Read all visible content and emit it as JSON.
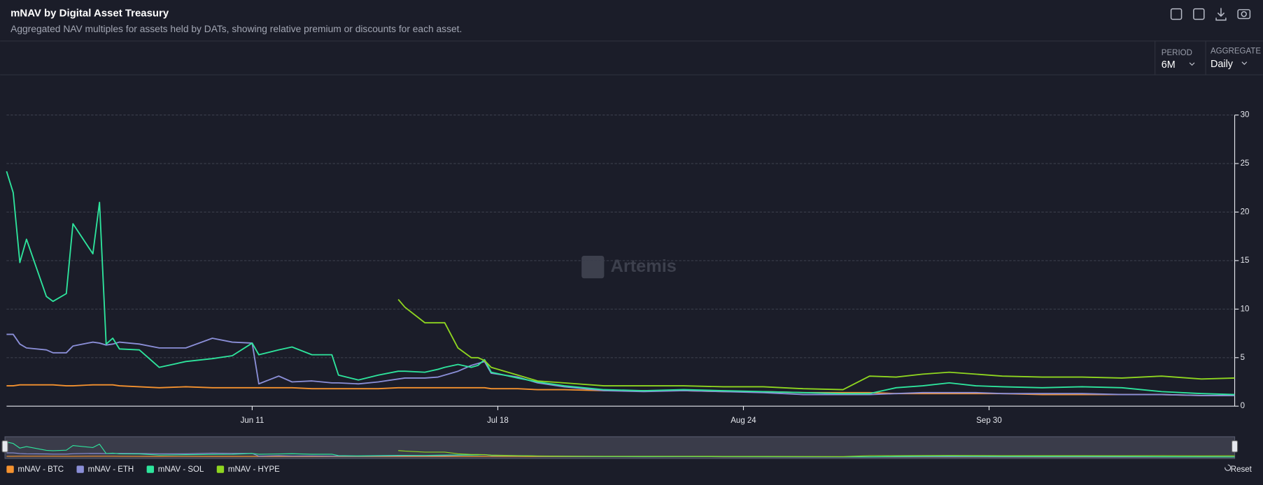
{
  "header": {
    "title": "mNAV by Digital Asset Treasury",
    "subtitle": "Aggregated NAV multiples for assets held by DATs, showing relative premium or discounts for each asset."
  },
  "controls": {
    "period_label": "PERIOD",
    "period": "6M",
    "aggregate_label": "AGGREGATE",
    "aggregate": "Daily",
    "reset": "Reset"
  },
  "watermark": "Artemis",
  "chart_data": {
    "type": "line",
    "x": [
      0,
      1,
      2,
      3,
      6,
      7,
      9,
      10,
      13,
      14,
      15,
      16,
      17,
      20,
      23,
      27,
      31,
      34,
      37,
      38,
      41,
      43,
      46,
      49,
      50,
      53,
      56,
      59,
      60,
      63,
      65,
      66,
      68,
      70,
      71,
      72,
      73,
      77,
      80,
      84,
      90,
      96,
      102,
      108,
      114,
      120,
      126,
      130,
      134,
      138,
      142,
      146,
      150,
      156,
      162,
      168,
      174,
      180,
      185
    ],
    "xlim": [
      0,
      185
    ],
    "xticks": [
      {
        "value": 37,
        "label": "Jun 11"
      },
      {
        "value": 74,
        "label": "Jul 18"
      },
      {
        "value": 111,
        "label": "Aug 24"
      },
      {
        "value": 148,
        "label": "Sep 30"
      }
    ],
    "ylim": [
      0,
      30
    ],
    "yticks": [
      0,
      5,
      10,
      15,
      20,
      25,
      30
    ],
    "grid": true,
    "series": [
      {
        "name": "mNAV - BTC",
        "color": "#f5922f",
        "values": [
          2.1,
          2.1,
          2.2,
          2.2,
          2.2,
          2.2,
          2.1,
          2.1,
          2.2,
          2.2,
          2.2,
          2.2,
          2.1,
          2.0,
          1.9,
          2.0,
          1.9,
          1.9,
          1.9,
          1.9,
          1.9,
          1.9,
          1.8,
          1.8,
          1.8,
          1.8,
          1.8,
          1.9,
          1.9,
          1.9,
          1.9,
          1.9,
          1.9,
          1.9,
          1.9,
          1.9,
          1.8,
          1.8,
          1.7,
          1.7,
          1.6,
          1.6,
          1.6,
          1.5,
          1.5,
          1.4,
          1.4,
          1.4,
          1.3,
          1.3,
          1.3,
          1.3,
          1.3,
          1.2,
          1.2,
          1.2,
          1.2,
          1.1,
          1.1
        ]
      },
      {
        "name": "mNAV - ETH",
        "color": "#8b8fd8",
        "values": [
          7.4,
          7.4,
          6.4,
          6.0,
          5.8,
          5.5,
          5.5,
          6.2,
          6.6,
          6.5,
          6.3,
          6.4,
          6.6,
          6.4,
          6.0,
          6.0,
          7.0,
          6.6,
          6.5,
          2.3,
          3.1,
          2.5,
          2.6,
          2.4,
          2.4,
          2.3,
          2.5,
          2.8,
          2.9,
          2.9,
          3.0,
          3.2,
          3.6,
          4.2,
          4.4,
          4.6,
          3.4,
          3.0,
          2.4,
          2.0,
          1.6,
          1.5,
          1.6,
          1.5,
          1.4,
          1.2,
          1.2,
          1.2,
          1.3,
          1.4,
          1.4,
          1.4,
          1.3,
          1.3,
          1.3,
          1.2,
          1.2,
          1.1,
          1.1
        ]
      },
      {
        "name": "mNAV - SOL",
        "color": "#2ee59d",
        "values": [
          24.2,
          22,
          14.8,
          17.2,
          11.3,
          10.8,
          11.6,
          18.8,
          15.7,
          21,
          6.4,
          7.0,
          5.9,
          5.8,
          4.0,
          4.6,
          4.9,
          5.2,
          6.5,
          5.3,
          5.8,
          6.1,
          5.3,
          5.3,
          3.2,
          2.7,
          3.2,
          3.6,
          3.6,
          3.5,
          3.8,
          4.0,
          4.3,
          4.0,
          4.2,
          4.8,
          3.5,
          2.9,
          2.5,
          2.1,
          1.7,
          1.6,
          1.7,
          1.6,
          1.5,
          1.4,
          1.3,
          1.3,
          1.9,
          2.1,
          2.4,
          2.1,
          2.0,
          1.9,
          2.0,
          1.9,
          1.5,
          1.3,
          1.2
        ]
      },
      {
        "name": "mNAV - HYPE",
        "color": "#8fd620",
        "values": [
          null,
          null,
          null,
          null,
          null,
          null,
          null,
          null,
          null,
          null,
          null,
          null,
          null,
          null,
          null,
          null,
          null,
          null,
          null,
          null,
          null,
          null,
          null,
          null,
          null,
          null,
          null,
          11.0,
          10.2,
          8.6,
          8.6,
          8.6,
          6.0,
          5.0,
          5.0,
          4.7,
          4.0,
          3.2,
          2.6,
          2.4,
          2.1,
          2.1,
          2.1,
          2.0,
          2.0,
          1.8,
          1.7,
          3.1,
          3.0,
          3.3,
          3.5,
          3.3,
          3.1,
          3.0,
          3.0,
          2.9,
          3.1,
          2.8,
          2.9
        ]
      }
    ]
  }
}
